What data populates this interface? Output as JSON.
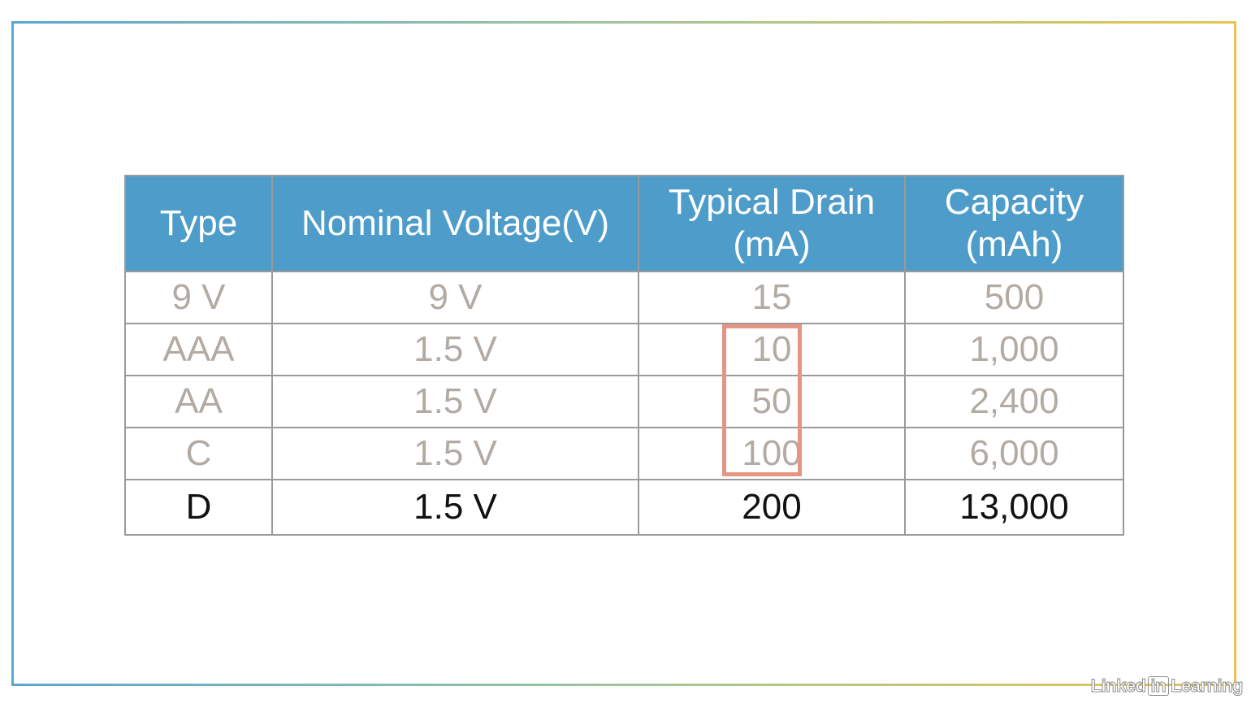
{
  "table": {
    "headers": [
      [
        "Type"
      ],
      [
        "Nominal Voltage(V)"
      ],
      [
        "Typical Drain",
        "(mA)"
      ],
      [
        "Capacity",
        "(mAh)"
      ]
    ],
    "rows": [
      [
        "9 V",
        "9 V",
        "15",
        "500"
      ],
      [
        "AAA",
        "1.5 V",
        "10",
        "1,000"
      ],
      [
        "AA",
        "1.5 V",
        "50",
        "2,400"
      ],
      [
        "C",
        "1.5 V",
        "100",
        "6,000"
      ],
      [
        "D",
        "1.5 V",
        "200",
        "13,000"
      ]
    ]
  },
  "colors": {
    "header_bg": "#4e9cc9",
    "muted_text": "#b2aba4",
    "emphasis_text": "#111111",
    "highlight_box": "#e59582"
  },
  "watermark": {
    "left": "Linked",
    "mid": "in",
    "right": "Learning"
  }
}
